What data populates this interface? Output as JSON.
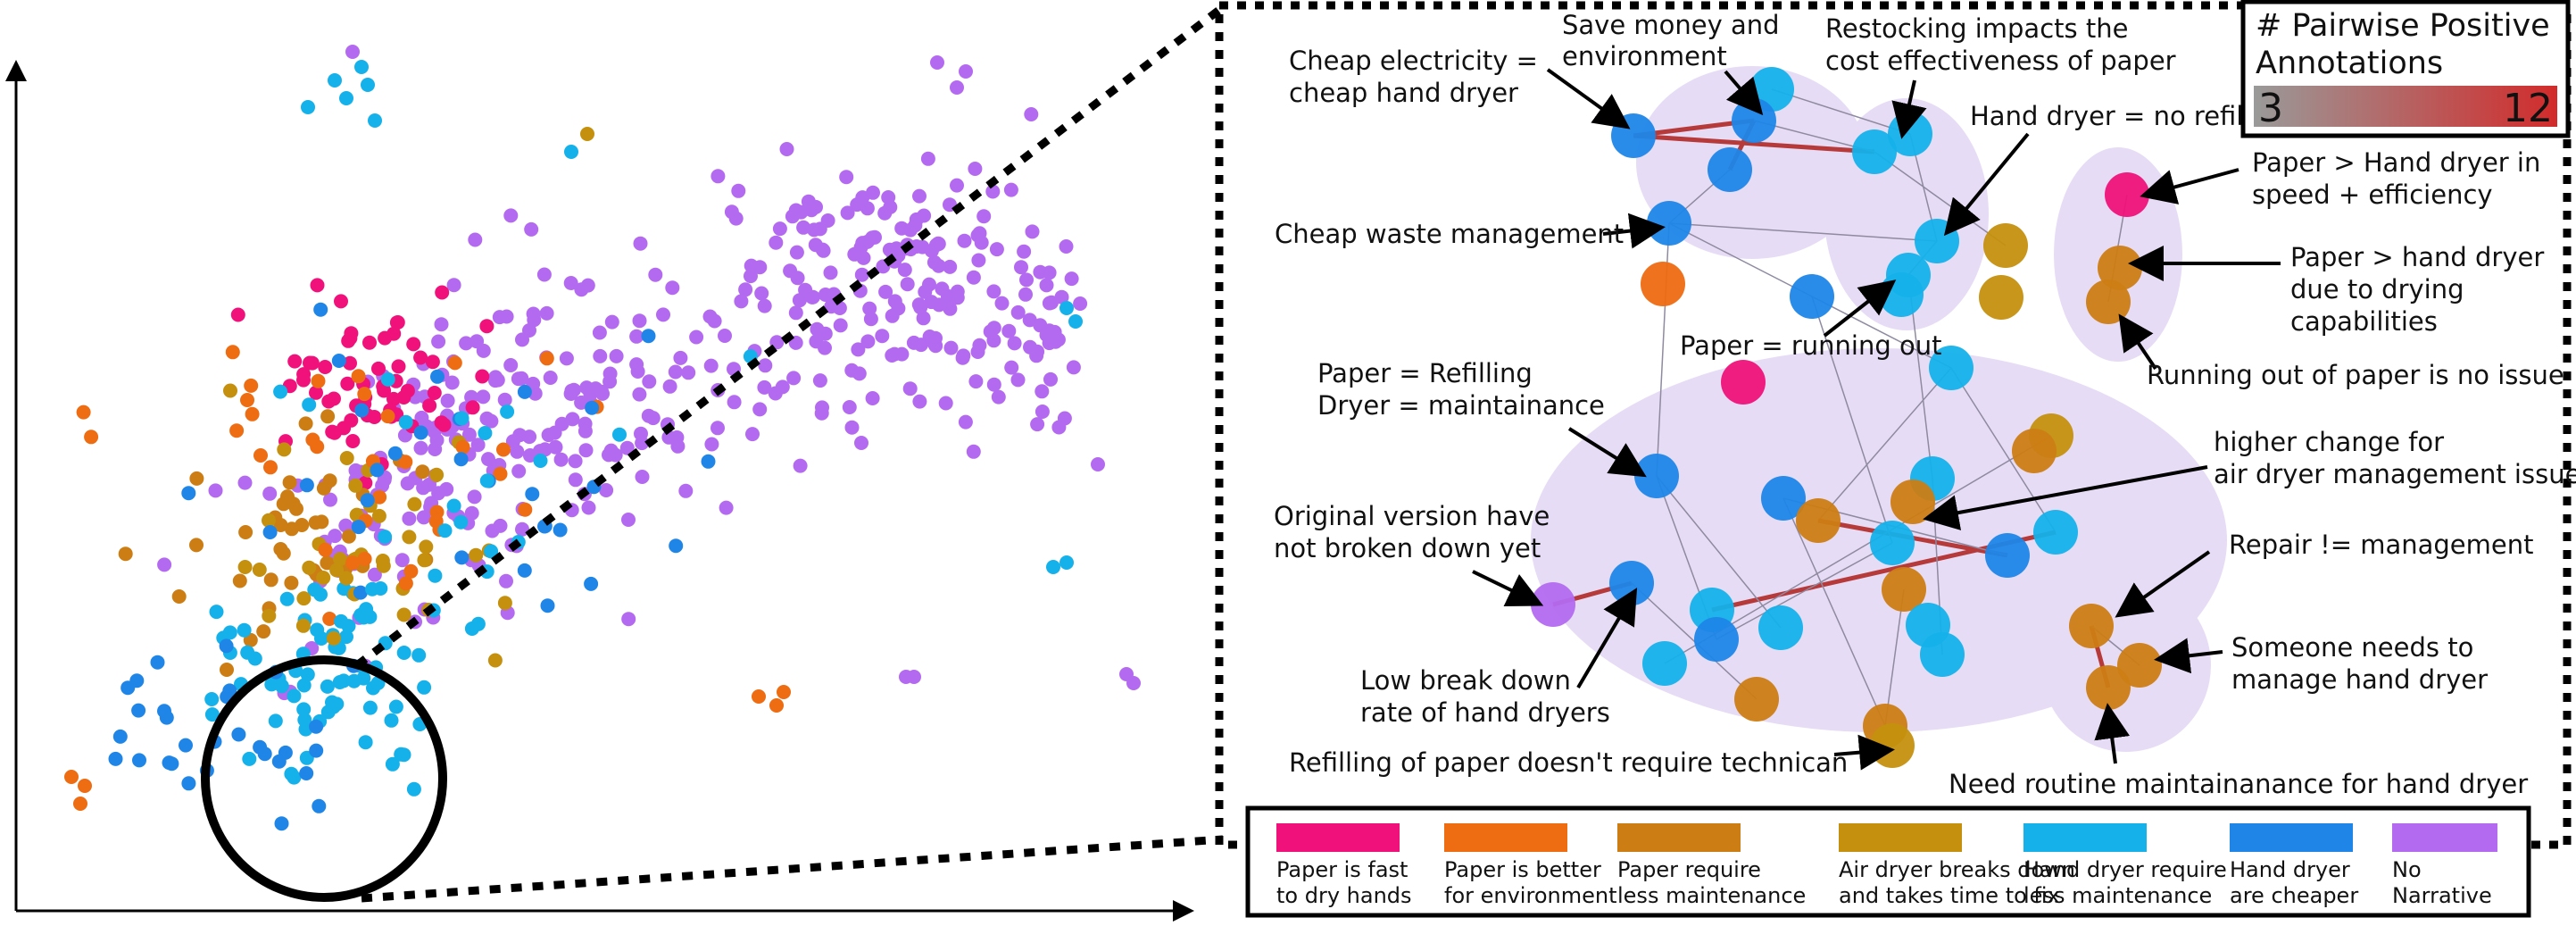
{
  "colorbar": {
    "title_line1": "# Pairwise Positive",
    "title_line2": "Annotations",
    "min_label": "3",
    "max_label": "12",
    "min_color": "#9a9a9a",
    "max_color": "#d22b2b"
  },
  "legend": [
    {
      "line1": "Paper is fast",
      "line2": "to dry hands",
      "color": "#f0127a"
    },
    {
      "line1": "Paper is better",
      "line2": "for environment",
      "color": "#ee6c12"
    },
    {
      "line1": "Paper require",
      "line2": "less maintenance",
      "color": "#cc7d14"
    },
    {
      "line1": "Air dryer breaks down",
      "line2": "and takes time to fix",
      "color": "#c4900e"
    },
    {
      "line1": "Hand dryer require",
      "line2": "less maintenance",
      "color": "#14b1ea"
    },
    {
      "line1": "Hand dryer",
      "line2": "are cheaper",
      "color": "#1f86e8"
    },
    {
      "line1": "No",
      "line2": "Narrative",
      "color": "#b36af0"
    }
  ],
  "annotations": [
    {
      "lines": [
        "Save money and",
        "environment"
      ]
    },
    {
      "lines": [
        "Restocking impacts the",
        "cost effectiveness of paper"
      ]
    },
    {
      "lines": [
        "Cheap electricity =",
        "cheap hand dryer"
      ]
    },
    {
      "lines": [
        "Hand dryer = no refill"
      ]
    },
    {
      "lines": [
        "Paper > Hand dryer in",
        "speed + efficiency"
      ]
    },
    {
      "lines": [
        "Cheap waste management"
      ]
    },
    {
      "lines": [
        "Paper > hand dryer",
        "due to drying",
        "capabilities"
      ]
    },
    {
      "lines": [
        "Paper = running out"
      ]
    },
    {
      "lines": [
        "Running out of paper is no issue"
      ]
    },
    {
      "lines": [
        "Paper = Refilling",
        "Dryer = maintainance"
      ]
    },
    {
      "lines": [
        "higher change for",
        "air dryer management issue"
      ]
    },
    {
      "lines": [
        "Original version have",
        "not broken down yet"
      ]
    },
    {
      "lines": [
        "Repair != management"
      ]
    },
    {
      "lines": [
        "Someone needs to",
        "manage hand dryer"
      ]
    },
    {
      "lines": [
        "Low break down",
        "rate of hand dryers"
      ]
    },
    {
      "lines": [
        "Refilling of paper doesn't require technican"
      ]
    },
    {
      "lines": [
        "Need routine maintainanance for hand dryer"
      ]
    }
  ]
}
